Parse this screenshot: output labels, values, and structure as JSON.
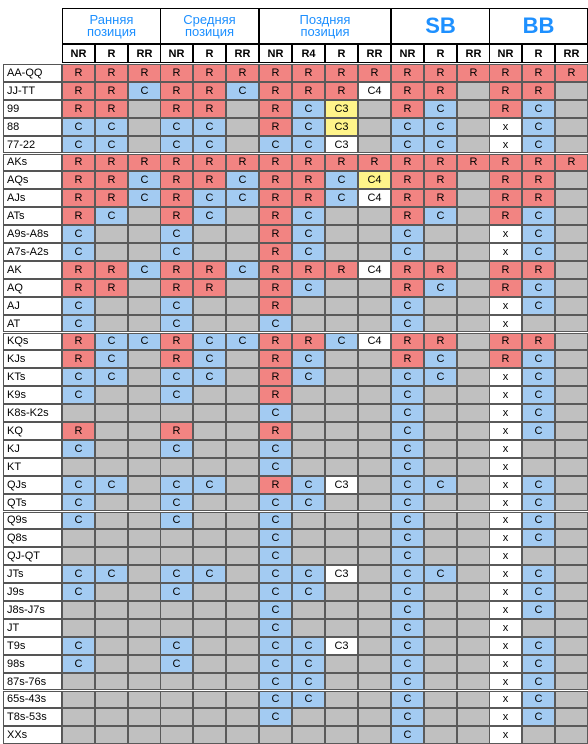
{
  "groups": [
    {
      "title": "Ранняя\nпозиция",
      "big": false,
      "cols": [
        "NR",
        "R",
        "RR"
      ]
    },
    {
      "title": "Средняя\nпозиция",
      "big": false,
      "cols": [
        "NR",
        "R",
        "RR"
      ]
    },
    {
      "title": "Поздняя\nпозиция",
      "big": false,
      "cols": [
        "NR",
        "R4",
        "R",
        "RR"
      ]
    },
    {
      "title": "SB",
      "big": true,
      "cols": [
        "NR",
        "R",
        "RR"
      ]
    },
    {
      "title": "BB",
      "big": true,
      "cols": [
        "NR",
        "R",
        "RR"
      ]
    }
  ],
  "colors": {
    "R": "#f28482",
    "C": "#a3cbf2",
    "gray": "#c0c0c0",
    "white": "#ffffff",
    "yellow": "#fff48a"
  },
  "rows": [
    {
      "hand": "AA-QQ",
      "cells": [
        "R",
        "R",
        "R",
        "R",
        "R",
        "R",
        "R",
        "R",
        "R",
        "R",
        "R",
        "R",
        "R",
        "R",
        "R",
        "R"
      ]
    },
    {
      "hand": "JJ-TT",
      "cells": [
        "R",
        "R",
        "C",
        "R",
        "R",
        "C",
        "R",
        "R",
        "R",
        "w:C4",
        "R",
        "R",
        "-",
        "R",
        "R",
        "-"
      ]
    },
    {
      "hand": "99",
      "cells": [
        "R",
        "R",
        "-",
        "R",
        "R",
        "-",
        "R",
        "C",
        "y:C3",
        "-",
        "R",
        "C",
        "-",
        "R",
        "C",
        "-"
      ]
    },
    {
      "hand": "88",
      "cells": [
        "C",
        "C",
        "-",
        "C",
        "C",
        "-",
        "R",
        "C",
        "y:C3",
        "-",
        "C",
        "C",
        "-",
        "w:x",
        "C",
        "-"
      ]
    },
    {
      "hand": "77-22",
      "cells": [
        "C",
        "C",
        "-",
        "C",
        "C",
        "-",
        "C",
        "C",
        "w:C3",
        "-",
        "C",
        "C",
        "-",
        "w:x",
        "C",
        "-"
      ]
    },
    {
      "hand": "AKs",
      "cells": [
        "R",
        "R",
        "R",
        "R",
        "R",
        "R",
        "R",
        "R",
        "R",
        "R",
        "R",
        "R",
        "R",
        "R",
        "R",
        "R"
      ]
    },
    {
      "hand": "AQs",
      "cells": [
        "R",
        "R",
        "C",
        "R",
        "R",
        "C",
        "R",
        "R",
        "C",
        "y:C4",
        "R",
        "R",
        "-",
        "R",
        "R",
        "-"
      ]
    },
    {
      "hand": "AJs",
      "cells": [
        "R",
        "R",
        "C",
        "R",
        "C",
        "C",
        "R",
        "R",
        "C",
        "w:C4",
        "R",
        "R",
        "-",
        "R",
        "R",
        "-"
      ]
    },
    {
      "hand": "ATs",
      "cells": [
        "R",
        "C",
        "-",
        "R",
        "C",
        "-",
        "R",
        "C",
        "-",
        "-",
        "R",
        "C",
        "-",
        "R",
        "C",
        "-"
      ]
    },
    {
      "hand": "A9s-A8s",
      "cells": [
        "C",
        "-",
        "-",
        "C",
        "-",
        "-",
        "R",
        "C",
        "-",
        "-",
        "C",
        "-",
        "-",
        "w:x",
        "C",
        "-"
      ]
    },
    {
      "hand": "A7s-A2s",
      "cells": [
        "C",
        "-",
        "-",
        "C",
        "-",
        "-",
        "R",
        "C",
        "-",
        "-",
        "C",
        "-",
        "-",
        "w:x",
        "C",
        "-"
      ]
    },
    {
      "hand": "AK",
      "cells": [
        "R",
        "R",
        "C",
        "R",
        "R",
        "C",
        "R",
        "R",
        "R",
        "w:C4",
        "R",
        "R",
        "-",
        "R",
        "R",
        "-"
      ]
    },
    {
      "hand": "AQ",
      "cells": [
        "R",
        "R",
        "-",
        "R",
        "R",
        "-",
        "R",
        "C",
        "-",
        "-",
        "R",
        "C",
        "-",
        "R",
        "C",
        "-"
      ]
    },
    {
      "hand": "AJ",
      "cells": [
        "C",
        "-",
        "-",
        "C",
        "-",
        "-",
        "R",
        "-",
        "-",
        "-",
        "C",
        "-",
        "-",
        "w:x",
        "C",
        "-"
      ]
    },
    {
      "hand": "AT",
      "cells": [
        "C",
        "-",
        "-",
        "C",
        "-",
        "-",
        "C",
        "-",
        "-",
        "-",
        "C",
        "-",
        "-",
        "w:x",
        "-",
        "-"
      ]
    },
    {
      "hand": "KQs",
      "cells": [
        "R",
        "C",
        "C",
        "R",
        "C",
        "C",
        "R",
        "R",
        "C",
        "w:C4",
        "R",
        "R",
        "-",
        "R",
        "R",
        "-"
      ]
    },
    {
      "hand": "KJs",
      "cells": [
        "R",
        "C",
        "-",
        "R",
        "C",
        "-",
        "R",
        "C",
        "-",
        "-",
        "R",
        "C",
        "-",
        "R",
        "C",
        "-"
      ]
    },
    {
      "hand": "KTs",
      "cells": [
        "C",
        "C",
        "-",
        "C",
        "C",
        "-",
        "R",
        "C",
        "-",
        "-",
        "C",
        "C",
        "-",
        "w:x",
        "C",
        "-"
      ]
    },
    {
      "hand": "K9s",
      "cells": [
        "C",
        "-",
        "-",
        "C",
        "-",
        "-",
        "R",
        "-",
        "-",
        "-",
        "C",
        "-",
        "-",
        "w:x",
        "C",
        "-"
      ]
    },
    {
      "hand": "K8s-K2s",
      "cells": [
        "-",
        "-",
        "-",
        "-",
        "-",
        "-",
        "C",
        "-",
        "-",
        "-",
        "C",
        "-",
        "-",
        "w:x",
        "C",
        "-"
      ]
    },
    {
      "hand": "KQ",
      "cells": [
        "R",
        "-",
        "-",
        "R",
        "-",
        "-",
        "R",
        "-",
        "-",
        "-",
        "C",
        "-",
        "-",
        "w:x",
        "C",
        "-"
      ]
    },
    {
      "hand": "KJ",
      "cells": [
        "C",
        "-",
        "-",
        "C",
        "-",
        "-",
        "C",
        "-",
        "-",
        "-",
        "C",
        "-",
        "-",
        "w:x",
        "-",
        "-"
      ]
    },
    {
      "hand": "KT",
      "cells": [
        "-",
        "-",
        "-",
        "-",
        "-",
        "-",
        "C",
        "-",
        "-",
        "-",
        "C",
        "-",
        "-",
        "w:x",
        "-",
        "-"
      ]
    },
    {
      "hand": "QJs",
      "cells": [
        "C",
        "C",
        "-",
        "C",
        "C",
        "-",
        "R",
        "C",
        "w:C3",
        "-",
        "C",
        "C",
        "-",
        "w:x",
        "C",
        "-"
      ]
    },
    {
      "hand": "QTs",
      "cells": [
        "C",
        "-",
        "-",
        "C",
        "-",
        "-",
        "C",
        "C",
        "-",
        "-",
        "C",
        "-",
        "-",
        "w:x",
        "C",
        "-"
      ]
    },
    {
      "hand": "Q9s",
      "cells": [
        "C",
        "-",
        "-",
        "C",
        "-",
        "-",
        "C",
        "-",
        "-",
        "-",
        "C",
        "-",
        "-",
        "w:x",
        "C",
        "-"
      ]
    },
    {
      "hand": "Q8s",
      "cells": [
        "-",
        "-",
        "-",
        "-",
        "-",
        "-",
        "C",
        "-",
        "-",
        "-",
        "C",
        "-",
        "-",
        "w:x",
        "C",
        "-"
      ]
    },
    {
      "hand": "QJ-QT",
      "cells": [
        "-",
        "-",
        "-",
        "-",
        "-",
        "-",
        "C",
        "-",
        "-",
        "-",
        "C",
        "-",
        "-",
        "w:x",
        "-",
        "-"
      ]
    },
    {
      "hand": "JTs",
      "cells": [
        "C",
        "C",
        "-",
        "C",
        "C",
        "-",
        "C",
        "C",
        "w:C3",
        "-",
        "C",
        "C",
        "-",
        "w:x",
        "C",
        "-"
      ]
    },
    {
      "hand": "J9s",
      "cells": [
        "C",
        "-",
        "-",
        "C",
        "-",
        "-",
        "C",
        "C",
        "-",
        "-",
        "C",
        "-",
        "-",
        "w:x",
        "C",
        "-"
      ]
    },
    {
      "hand": "J8s-J7s",
      "cells": [
        "-",
        "-",
        "-",
        "-",
        "-",
        "-",
        "C",
        "-",
        "-",
        "-",
        "C",
        "-",
        "-",
        "w:x",
        "C",
        "-"
      ]
    },
    {
      "hand": "JT",
      "cells": [
        "-",
        "-",
        "-",
        "-",
        "-",
        "-",
        "C",
        "-",
        "-",
        "-",
        "C",
        "-",
        "-",
        "w:x",
        "-",
        "-"
      ]
    },
    {
      "hand": "T9s",
      "cells": [
        "C",
        "-",
        "-",
        "C",
        "-",
        "-",
        "C",
        "C",
        "w:C3",
        "-",
        "C",
        "-",
        "-",
        "w:x",
        "C",
        "-"
      ]
    },
    {
      "hand": "98s",
      "cells": [
        "C",
        "-",
        "-",
        "C",
        "-",
        "-",
        "C",
        "C",
        "-",
        "-",
        "C",
        "-",
        "-",
        "w:x",
        "C",
        "-"
      ]
    },
    {
      "hand": "87s-76s",
      "cells": [
        "-",
        "-",
        "-",
        "-",
        "-",
        "-",
        "C",
        "C",
        "-",
        "-",
        "C",
        "-",
        "-",
        "w:x",
        "C",
        "-"
      ]
    },
    {
      "hand": "65s-43s",
      "cells": [
        "-",
        "-",
        "-",
        "-",
        "-",
        "-",
        "C",
        "C",
        "-",
        "-",
        "C",
        "-",
        "-",
        "w:x",
        "C",
        "-"
      ]
    },
    {
      "hand": "T8s-53s",
      "cells": [
        "-",
        "-",
        "-",
        "-",
        "-",
        "-",
        "C",
        "-",
        "-",
        "-",
        "C",
        "-",
        "-",
        "w:x",
        "C",
        "-"
      ]
    },
    {
      "hand": "XXs",
      "cells": [
        "-",
        "-",
        "-",
        "-",
        "-",
        "-",
        "-",
        "-",
        "-",
        "-",
        "C",
        "-",
        "-",
        "w:x",
        "-",
        "-"
      ]
    }
  ]
}
